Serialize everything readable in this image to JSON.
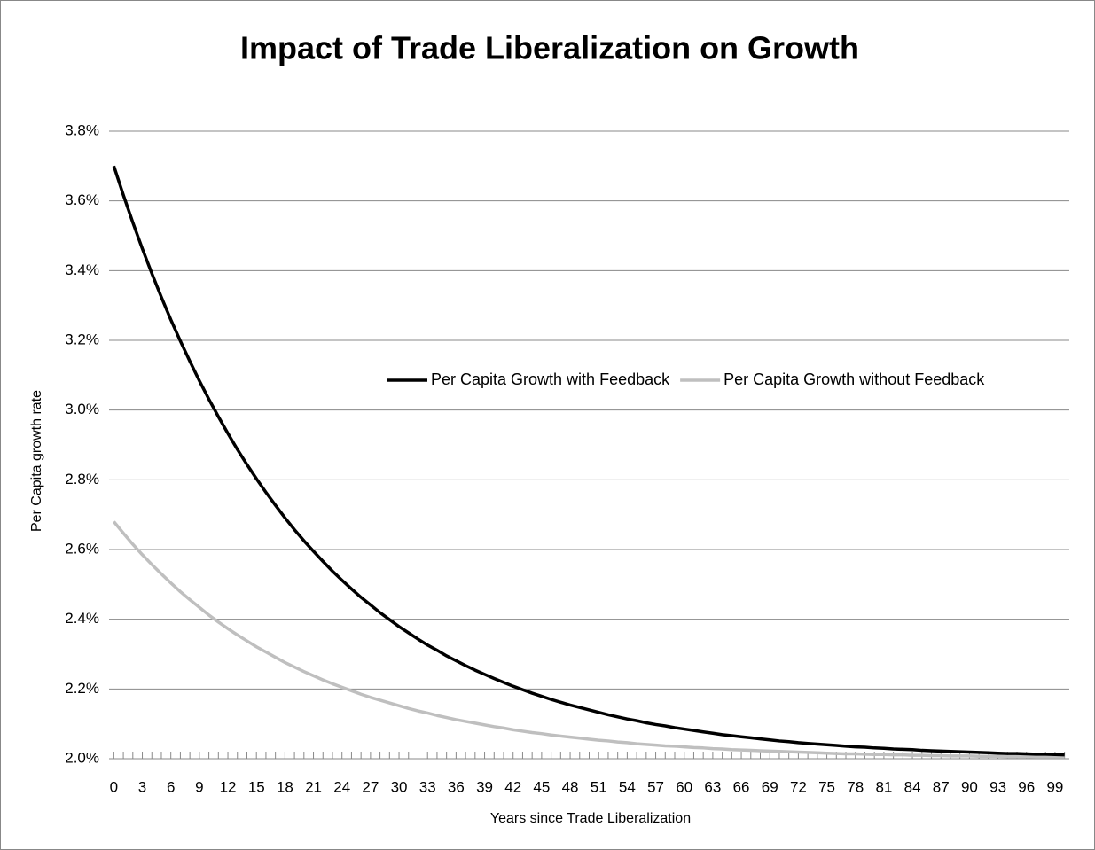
{
  "chart_data": {
    "type": "line",
    "title": "Impact of Trade Liberalization on Growth",
    "x_label": "Years since Trade Liberalization",
    "y_label": "Per Capita growth rate",
    "categories": [
      0,
      null,
      null,
      3,
      null,
      null,
      6,
      null,
      null,
      9,
      null,
      null,
      12,
      null,
      null,
      15,
      null,
      null,
      18,
      null,
      null,
      21,
      null,
      null,
      24,
      null,
      null,
      27,
      null,
      null,
      30,
      null,
      null,
      33,
      null,
      null,
      36,
      null,
      null,
      39,
      null,
      null,
      42,
      null,
      null,
      45,
      null,
      null,
      48,
      null,
      null,
      51,
      null,
      null,
      54,
      null,
      null,
      57,
      null,
      null,
      60,
      null,
      null,
      63,
      null,
      null,
      66,
      null,
      null,
      69,
      null,
      null,
      72,
      null,
      null,
      75,
      null,
      null,
      78,
      null,
      null,
      81,
      null,
      null,
      84,
      null,
      null,
      87,
      null,
      null,
      90,
      null,
      null,
      93,
      null,
      null,
      96,
      null,
      null,
      99,
      null
    ],
    "series": [
      {
        "name": "Per Capita Growth with Feedback",
        "color": "#000000",
        "values": [
          3.7,
          3.617,
          3.538,
          3.463,
          3.392,
          3.324,
          3.259,
          3.198,
          3.14,
          3.084,
          3.031,
          2.981,
          2.933,
          2.887,
          2.844,
          2.803,
          2.764,
          2.727,
          2.691,
          2.657,
          2.625,
          2.595,
          2.566,
          2.538,
          2.512,
          2.487,
          2.463,
          2.441,
          2.419,
          2.399,
          2.379,
          2.361,
          2.343,
          2.326,
          2.311,
          2.295,
          2.281,
          2.267,
          2.254,
          2.242,
          2.23,
          2.219,
          2.208,
          2.198,
          2.188,
          2.179,
          2.17,
          2.162,
          2.154,
          2.147,
          2.14,
          2.133,
          2.126,
          2.12,
          2.114,
          2.109,
          2.103,
          2.098,
          2.094,
          2.089,
          2.085,
          2.081,
          2.077,
          2.073,
          2.069,
          2.066,
          2.063,
          2.06,
          2.057,
          2.054,
          2.051,
          2.049,
          2.046,
          2.044,
          2.042,
          2.04,
          2.038,
          2.036,
          2.034,
          2.033,
          2.031,
          2.03,
          2.028,
          2.027,
          2.026,
          2.024,
          2.023,
          2.022,
          2.021,
          2.02,
          2.019,
          2.018,
          2.017,
          2.016,
          2.015,
          2.015,
          2.014,
          2.013,
          2.013,
          2.012,
          2.011
        ]
      },
      {
        "name": "Per Capita Growth without Feedback",
        "color": "#bfbfbf",
        "values": [
          2.68,
          2.647,
          2.615,
          2.585,
          2.557,
          2.53,
          2.504,
          2.479,
          2.456,
          2.434,
          2.412,
          2.392,
          2.373,
          2.355,
          2.338,
          2.321,
          2.306,
          2.291,
          2.276,
          2.263,
          2.25,
          2.238,
          2.226,
          2.215,
          2.205,
          2.195,
          2.185,
          2.176,
          2.168,
          2.16,
          2.152,
          2.144,
          2.137,
          2.131,
          2.124,
          2.118,
          2.112,
          2.107,
          2.102,
          2.097,
          2.092,
          2.088,
          2.083,
          2.079,
          2.075,
          2.072,
          2.068,
          2.065,
          2.062,
          2.059,
          2.056,
          2.053,
          2.051,
          2.048,
          2.046,
          2.043,
          2.041,
          2.039,
          2.037,
          2.036,
          2.034,
          2.032,
          2.031,
          2.029,
          2.028,
          2.026,
          2.025,
          2.024,
          2.023,
          2.022,
          2.021,
          2.02,
          2.019,
          2.018,
          2.017,
          2.016,
          2.015,
          2.014,
          2.014,
          2.013,
          2.012,
          2.012,
          2.011,
          2.011,
          2.01,
          2.01,
          2.009,
          2.009,
          2.008,
          2.008,
          2.008,
          2.007,
          2.007,
          2.007,
          2.006,
          2.006,
          2.006,
          2.005,
          2.005,
          2.005,
          2.005
        ]
      }
    ],
    "ylim": [
      2.0,
      3.8
    ],
    "yticks": [
      {
        "value": 2.0,
        "label": "2.0%"
      },
      {
        "value": 2.2,
        "label": "2.2%"
      },
      {
        "value": 2.4,
        "label": "2.4%"
      },
      {
        "value": 2.6,
        "label": "2.6%"
      },
      {
        "value": 2.8,
        "label": "2.8%"
      },
      {
        "value": 3.0,
        "label": "3.0%"
      },
      {
        "value": 3.2,
        "label": "3.2%"
      },
      {
        "value": 3.4,
        "label": "3.4%"
      },
      {
        "value": 3.6,
        "label": "3.6%"
      },
      {
        "value": 3.8,
        "label": "3.8%"
      }
    ],
    "grid": true
  }
}
